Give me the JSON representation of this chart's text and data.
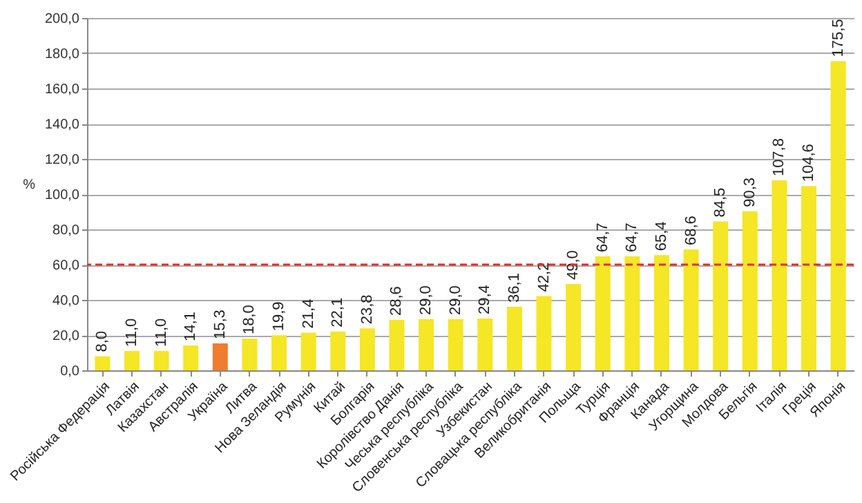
{
  "chart_data": {
    "type": "bar",
    "ylabel": "%",
    "categories": [
      "Російська Федерація",
      "Латвія",
      "Казахстан",
      "Австралія",
      "Україна",
      "Литва",
      "Нова Зеландія",
      "Румунія",
      "Китай",
      "Болгарія",
      "Королівство Данія",
      "Чеська республіка",
      "Словенська республіка",
      "Узбекистан",
      "Словацька республіка",
      "Великобританія",
      "Польща",
      "Турція",
      "Франція",
      "Канада",
      "Угорщина",
      "Молдова",
      "Бельгія",
      "Італія",
      "Греція",
      "Японія"
    ],
    "values": [
      8.0,
      11.0,
      11.0,
      14.1,
      15.3,
      18.0,
      19.9,
      21.4,
      22.1,
      23.8,
      28.6,
      29.0,
      29.0,
      29.4,
      36.1,
      42.2,
      49.0,
      64.7,
      64.7,
      65.4,
      68.6,
      84.5,
      90.3,
      107.8,
      104.6,
      175.5
    ],
    "value_labels": [
      "8,0",
      "11,0",
      "11,0",
      "14,1",
      "15,3",
      "18,0",
      "19,9",
      "21,4",
      "22,1",
      "23,8",
      "28,6",
      "29,0",
      "29,0",
      "29,4",
      "36,1",
      "42,2",
      "49,0",
      "64,7",
      "64,7",
      "65,4",
      "68,6",
      "84,5",
      "90,3",
      "107,8",
      "104,6",
      "175,5"
    ],
    "colors": [
      "#f5e626",
      "#f5e626",
      "#f5e626",
      "#f5e626",
      "#ee7d2e",
      "#f5e626",
      "#f5e626",
      "#f5e626",
      "#f5e626",
      "#f5e626",
      "#f5e626",
      "#f5e626",
      "#f5e626",
      "#f5e626",
      "#f5e626",
      "#f5e626",
      "#f5e626",
      "#f5e626",
      "#f5e626",
      "#f5e626",
      "#f5e626",
      "#f5e626",
      "#f5e626",
      "#f5e626",
      "#f5e626",
      "#f5e626"
    ],
    "ylim": [
      0,
      200
    ],
    "yticks": [
      {
        "value": 0,
        "label": "0,0"
      },
      {
        "value": 20,
        "label": "20,0"
      },
      {
        "value": 40,
        "label": "40,0"
      },
      {
        "value": 60,
        "label": "60,0"
      },
      {
        "value": 80,
        "label": "80,0"
      },
      {
        "value": 100,
        "label": "100,0"
      },
      {
        "value": 120,
        "label": "120,0"
      },
      {
        "value": 140,
        "label": "140,0"
      },
      {
        "value": 160,
        "label": "160,0"
      },
      {
        "value": 180,
        "label": "180,0"
      },
      {
        "value": 200,
        "label": "200,0"
      }
    ],
    "grid": "y",
    "ref_lines": [
      {
        "axis": "y",
        "value": 60,
        "color": "#e0302a",
        "line_style": "dashed"
      }
    ]
  }
}
